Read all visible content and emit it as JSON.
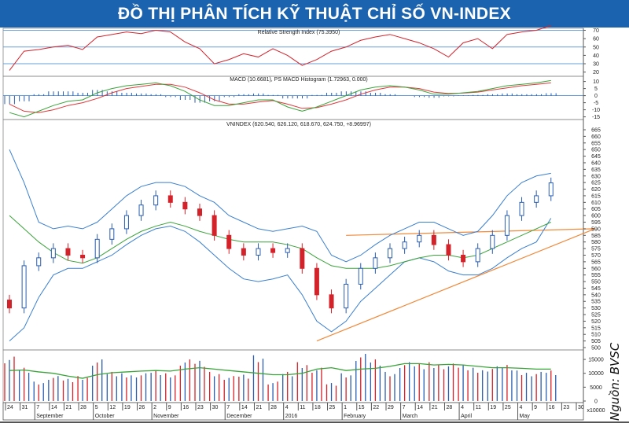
{
  "title": "ĐỒ THỊ PHÂN TÍCH KỸ THUẬT CHỈ SỐ VN-INDEX",
  "source": "Nguồn: BVSC",
  "colors": {
    "title_bg": "#1b63ae",
    "up": "#2a5db0",
    "down": "#d3222a",
    "rsi": "#d3222a",
    "macd": "#3aa33a",
    "signal": "#e0383a",
    "bb": "#3a7fd0",
    "ma": "#3aa33a",
    "trendline": "#f08a3c",
    "ref": "#6a9fd8"
  },
  "chart_data": [
    {
      "type": "line",
      "title": "Relative Strength Index (75.3950)",
      "ylim": [
        15,
        78
      ],
      "yticks": [
        "70",
        "60",
        "50",
        "40",
        "30",
        "20"
      ],
      "reference_lines": [
        70,
        50,
        30
      ],
      "values": [
        22,
        45,
        47,
        50,
        52,
        47,
        62,
        65,
        68,
        66,
        70,
        68,
        56,
        48,
        30,
        35,
        42,
        38,
        48,
        40,
        28,
        35,
        45,
        50,
        58,
        62,
        65,
        60,
        55,
        48,
        38,
        55,
        60,
        48,
        65,
        68,
        70,
        75.4
      ]
    },
    {
      "type": "line",
      "title": "MACD (10.6681), PS MACD Histogram (1.72963, 0.000)",
      "ylim": [
        -18,
        12
      ],
      "yticks": [
        "10",
        "5",
        "0",
        "-5",
        "-10",
        "-15"
      ],
      "series": [
        {
          "values": [
            -12,
            -15,
            -11,
            -7,
            -4,
            -3,
            2,
            5,
            7,
            8,
            9,
            7,
            3,
            -3,
            -7,
            -7,
            -5,
            -3,
            -3,
            -8,
            -11,
            -8,
            -4,
            0,
            4,
            6,
            7,
            6,
            4,
            1,
            1,
            2,
            3,
            5,
            7,
            8,
            9,
            10.7
          ]
        },
        {
          "values": [
            -6,
            -11,
            -12,
            -10,
            -7,
            -5,
            -2,
            2,
            5,
            6.5,
            8,
            8,
            6,
            2,
            -3,
            -6,
            -6,
            -4.5,
            -3.5,
            -6,
            -9,
            -8.5,
            -6,
            -3,
            1,
            4,
            6,
            6,
            5,
            2.5,
            1.5,
            1.8,
            2.5,
            4,
            5.5,
            7,
            8,
            9
          ]
        }
      ]
    },
    {
      "type": "candlestick",
      "title": "VNINDEX (620.540, 626.120, 618.670, 624.750, +8.96997)",
      "ylim": [
        500,
        665
      ],
      "yticks": [
        "665",
        "660",
        "655",
        "650",
        "645",
        "640",
        "635",
        "630",
        "625",
        "620",
        "615",
        "610",
        "605",
        "600",
        "595",
        "590",
        "585",
        "580",
        "575",
        "570",
        "565",
        "560",
        "555",
        "550",
        "545",
        "540",
        "535",
        "530",
        "525",
        "520",
        "515",
        "510",
        "505",
        "500"
      ],
      "close": [
        530,
        562,
        568,
        575,
        570,
        568,
        582,
        590,
        600,
        608,
        615,
        610,
        605,
        600,
        585,
        575,
        570,
        575,
        572,
        575,
        560,
        540,
        530,
        548,
        560,
        568,
        575,
        580,
        585,
        578,
        570,
        565,
        575,
        585,
        600,
        610,
        615,
        624.75
      ],
      "bb_upper": [
        650,
        625,
        595,
        590,
        592,
        590,
        595,
        605,
        615,
        622,
        625,
        625,
        622,
        615,
        610,
        600,
        595,
        590,
        588,
        590,
        592,
        588,
        570,
        565,
        570,
        578,
        585,
        590,
        595,
        595,
        590,
        585,
        588,
        600,
        615,
        625,
        630,
        632
      ],
      "bb_lower": [
        505,
        515,
        538,
        555,
        560,
        560,
        565,
        570,
        578,
        585,
        590,
        592,
        588,
        580,
        570,
        560,
        552,
        550,
        552,
        555,
        540,
        520,
        512,
        520,
        535,
        545,
        555,
        565,
        568,
        565,
        558,
        555,
        555,
        560,
        568,
        575,
        580,
        598
      ],
      "ma": [
        600,
        590,
        580,
        572,
        566,
        564,
        568,
        575,
        582,
        588,
        592,
        595,
        592,
        588,
        585,
        582,
        580,
        580,
        580,
        578,
        575,
        568,
        562,
        560,
        560,
        560,
        562,
        565,
        568,
        570,
        570,
        568,
        570,
        575,
        580,
        585,
        590,
        595
      ],
      "trendlines": [
        {
          "from": [
            "2016-01-18",
            505
          ],
          "to": [
            "2016-05-30",
            590
          ]
        },
        {
          "from": [
            "2016-02-01",
            585
          ],
          "to": [
            "2016-05-30",
            590
          ]
        }
      ]
    },
    {
      "type": "bar",
      "title": "",
      "ylim": [
        0,
        17000
      ],
      "yticks": [
        "15000",
        "10000",
        "5000",
        "0"
      ],
      "unit_label": "x10000",
      "values": [
        16000,
        12000,
        7000,
        9000,
        8000,
        9000,
        15000,
        10500,
        10000,
        10000,
        11000,
        10000,
        15000,
        14500,
        10500,
        9000,
        9500,
        16500,
        7000,
        10500,
        14000,
        12000,
        6500,
        10000,
        17000,
        15000,
        10500,
        14000,
        13500,
        14000,
        13500,
        13000,
        12000,
        12500,
        13000,
        11000,
        10500,
        11000
      ],
      "ma": [
        11000,
        11200,
        10500,
        10000,
        9000,
        8200,
        9500,
        10200,
        10500,
        10800,
        11000,
        10800,
        11500,
        12000,
        11500,
        11000,
        10500,
        10000,
        9500,
        9500,
        10000,
        11500,
        12000,
        11000,
        11500,
        11800,
        12500,
        13500,
        13500,
        13000,
        13200,
        13000,
        12500,
        12000,
        12000,
        11800,
        11500,
        11500
      ]
    }
  ],
  "x_axis": {
    "day_ticks": [
      "24",
      "31",
      "7",
      "14",
      "21",
      "28",
      "5",
      "12",
      "19",
      "26",
      "2",
      "9",
      "16",
      "23",
      "30",
      "7",
      "14",
      "21",
      "28",
      "4",
      "11",
      "18",
      "25",
      "1",
      "15",
      "22",
      "29",
      "7",
      "14",
      "21",
      "28",
      "4",
      "11",
      "19",
      "25",
      "4",
      "9",
      "16",
      "23",
      "30"
    ],
    "months": [
      {
        "label": "September",
        "tick": 2
      },
      {
        "label": "October",
        "tick": 6
      },
      {
        "label": "November",
        "tick": 10
      },
      {
        "label": "December",
        "tick": 15
      },
      {
        "label": "2016",
        "tick": 19
      },
      {
        "label": "February",
        "tick": 23
      },
      {
        "label": "March",
        "tick": 27
      },
      {
        "label": "April",
        "tick": 31
      },
      {
        "label": "May",
        "tick": 35
      }
    ]
  }
}
